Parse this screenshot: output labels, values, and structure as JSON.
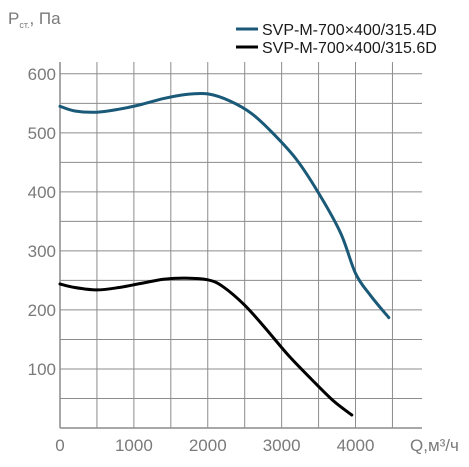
{
  "chart_data": {
    "type": "line",
    "ylabel_main": "P",
    "ylabel_sub": "ст.",
    "ylabel_unit": ", Па",
    "xlabel": "Q,м³/ч",
    "xlim": [
      0,
      4900
    ],
    "ylim": [
      0,
      620
    ],
    "xticks": [
      0,
      1000,
      2000,
      3000,
      4000
    ],
    "yticks": [
      100,
      200,
      300,
      400,
      500,
      600
    ],
    "grid": true,
    "legend_position": "top-right",
    "series": [
      {
        "name": "SVP-M-700×400/315.4D",
        "color": "#1a5a78",
        "x": [
          0,
          200,
          500,
          800,
          1100,
          1400,
          1700,
          2000,
          2300,
          2600,
          2900,
          3200,
          3500,
          3800,
          4000,
          4200,
          4450
        ],
        "y": [
          545,
          537,
          535,
          540,
          548,
          558,
          565,
          566,
          554,
          532,
          497,
          455,
          398,
          330,
          262,
          225,
          187
        ]
      },
      {
        "name": "SVP-M-700×400/315.6D",
        "color": "#000000",
        "x": [
          0,
          200,
          500,
          800,
          1100,
          1400,
          1700,
          2000,
          2200,
          2500,
          2800,
          3100,
          3400,
          3700,
          3950
        ],
        "y": [
          244,
          238,
          234,
          238,
          245,
          252,
          254,
          251,
          240,
          208,
          166,
          122,
          83,
          46,
          22
        ]
      }
    ]
  }
}
